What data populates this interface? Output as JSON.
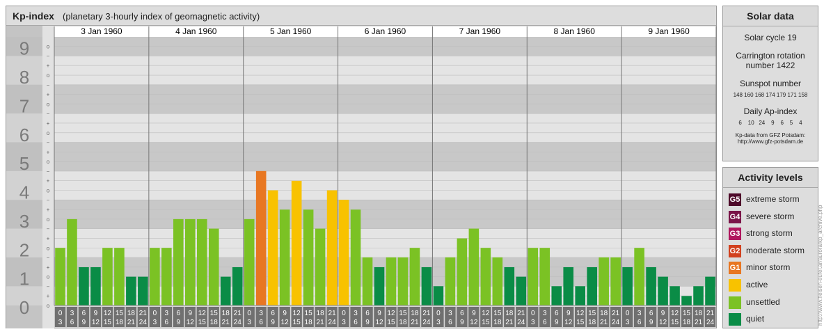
{
  "header": {
    "title": "Kp-index",
    "subtitle": "(planetary 3-hourly index of geomagnetic activity)"
  },
  "chart_data": {
    "type": "bar",
    "title": "Kp-index",
    "y_major_labels": [
      "0",
      "1",
      "2",
      "3",
      "4",
      "5",
      "6",
      "7",
      "8",
      "9"
    ],
    "y_sub_labels": [
      "−",
      "o",
      "+"
    ],
    "ylim": [
      0,
      9.33
    ],
    "days": [
      {
        "label": "3 Jan 1960",
        "values": [
          2.0,
          3.0,
          1.33,
          1.33,
          2.0,
          2.0,
          1.0,
          1.0
        ]
      },
      {
        "label": "4 Jan 1960",
        "values": [
          2.0,
          2.0,
          3.0,
          3.0,
          3.0,
          2.67,
          1.0,
          1.33
        ]
      },
      {
        "label": "5 Jan 1960",
        "values": [
          3.0,
          4.67,
          4.0,
          3.33,
          4.33,
          3.33,
          2.67,
          4.0
        ]
      },
      {
        "label": "6 Jan 1960",
        "values": [
          3.67,
          3.33,
          1.67,
          1.33,
          1.67,
          1.67,
          2.0,
          1.33
        ]
      },
      {
        "label": "7 Jan 1960",
        "values": [
          0.67,
          1.67,
          2.33,
          2.67,
          2.0,
          1.67,
          1.33,
          1.0
        ]
      },
      {
        "label": "8 Jan 1960",
        "values": [
          2.0,
          2.0,
          0.67,
          1.33,
          0.67,
          1.33,
          1.67,
          1.67
        ]
      },
      {
        "label": "9 Jan 1960",
        "values": [
          1.33,
          2.0,
          1.33,
          1.0,
          0.67,
          0.33,
          0.67,
          1.0
        ]
      }
    ],
    "hour_labels": [
      [
        "0",
        "3"
      ],
      [
        "3",
        "6"
      ],
      [
        "6",
        "9"
      ],
      [
        "9",
        "12"
      ],
      [
        "12",
        "15"
      ],
      [
        "15",
        "18"
      ],
      [
        "18",
        "21"
      ],
      [
        "21",
        "24"
      ]
    ],
    "colors": {
      "quiet": "#0a8c46",
      "unsettled": "#7bc224",
      "active": "#f8c200",
      "minor_storm": "#e87722",
      "moderate_storm": "#d2411e",
      "strong_storm": "#b0165e",
      "severe_storm": "#7a1448",
      "extreme_storm": "#4e0a2a"
    }
  },
  "solar": {
    "heading": "Solar data",
    "cycle": "Solar cycle 19",
    "carrington_1": "Carrington rotation",
    "carrington_2": "number 1422",
    "sunspot_title": "Sunspot number",
    "sunspot_values": "148 160 168 174 179 171 158",
    "ap_title": "Daily Ap-index",
    "ap_values": "6    10   24    9    6    5    4",
    "source_1": "Kp-data from GFZ Potsdam:",
    "source_2": "http://www.gfz-potsdam.de"
  },
  "activity": {
    "heading": "Activity levels",
    "levels": [
      {
        "code": "G5",
        "label": "extreme storm",
        "color": "#4e0a2a"
      },
      {
        "code": "G4",
        "label": "severe storm",
        "color": "#7a1448"
      },
      {
        "code": "G3",
        "label": "strong storm",
        "color": "#b0165e"
      },
      {
        "code": "G2",
        "label": "moderate storm",
        "color": "#d2411e"
      },
      {
        "code": "G1",
        "label": "minor storm",
        "color": "#e87722"
      },
      {
        "code": "",
        "label": "active",
        "color": "#f8c200"
      },
      {
        "code": "",
        "label": "unsettled",
        "color": "#7bc224"
      },
      {
        "code": "",
        "label": "quiet",
        "color": "#0a8c46"
      }
    ]
  },
  "watermark": "http://www.fleisen-eufel.ar/aurora/kp_archive.php"
}
